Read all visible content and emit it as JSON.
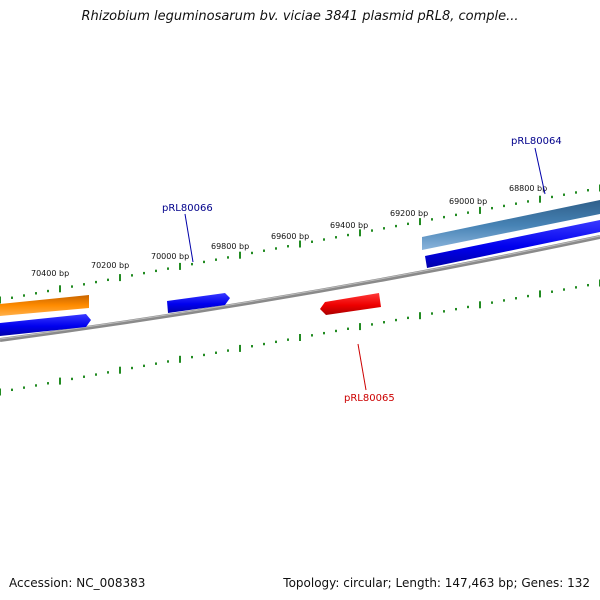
{
  "title": "Rhizobium leguminosarum bv. viciae 3841 plasmid pRL8, comple...",
  "footer": {
    "accession": "Accession: NC_008383",
    "summary": "Topology: circular; Length: 147,463 bp; Genes: 132"
  },
  "ruler": {
    "unit": "bp",
    "labels": [
      "70400 bp",
      "70200 bp",
      "70000 bp",
      "69800 bp",
      "69600 bp",
      "69400 bp",
      "69200 bp",
      "69000 bp",
      "68800 bp"
    ],
    "tick_color": "#228b22"
  },
  "gene_labels": {
    "pRL80064": "pRL80064",
    "pRL80066": "pRL80066",
    "pRL80065": "pRL80065"
  },
  "colors": {
    "backbone": "#808080",
    "forward_cds": "#0000ee",
    "reverse_cds": "#ee0000",
    "orange_feature": "#ff8c00",
    "steelblue_feature": "#4682b4",
    "forward_label": "#00008b",
    "reverse_label": "#cc0000"
  }
}
